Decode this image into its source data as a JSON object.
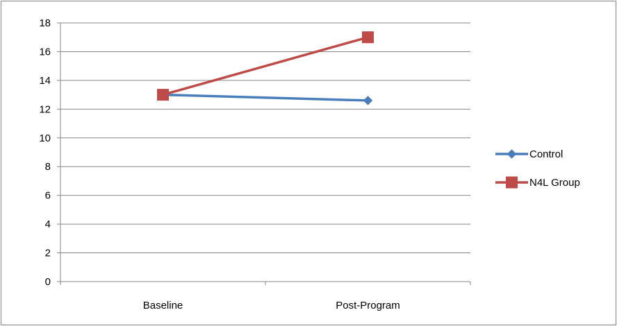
{
  "chart_data": {
    "type": "line",
    "title": "",
    "xlabel": "",
    "ylabel": "",
    "categories": [
      "Baseline",
      "Post-Program"
    ],
    "ylim": [
      0,
      18
    ],
    "yticks": [
      0,
      2,
      4,
      6,
      8,
      10,
      12,
      14,
      16,
      18
    ],
    "grid": true,
    "legend_position": "right",
    "series": [
      {
        "name": "Control",
        "values": [
          13,
          12.6
        ],
        "color": "#4a7ebb",
        "marker": "diamond"
      },
      {
        "name": "N4L Group",
        "values": [
          13,
          17
        ],
        "color": "#be4b48",
        "marker": "square"
      }
    ]
  }
}
